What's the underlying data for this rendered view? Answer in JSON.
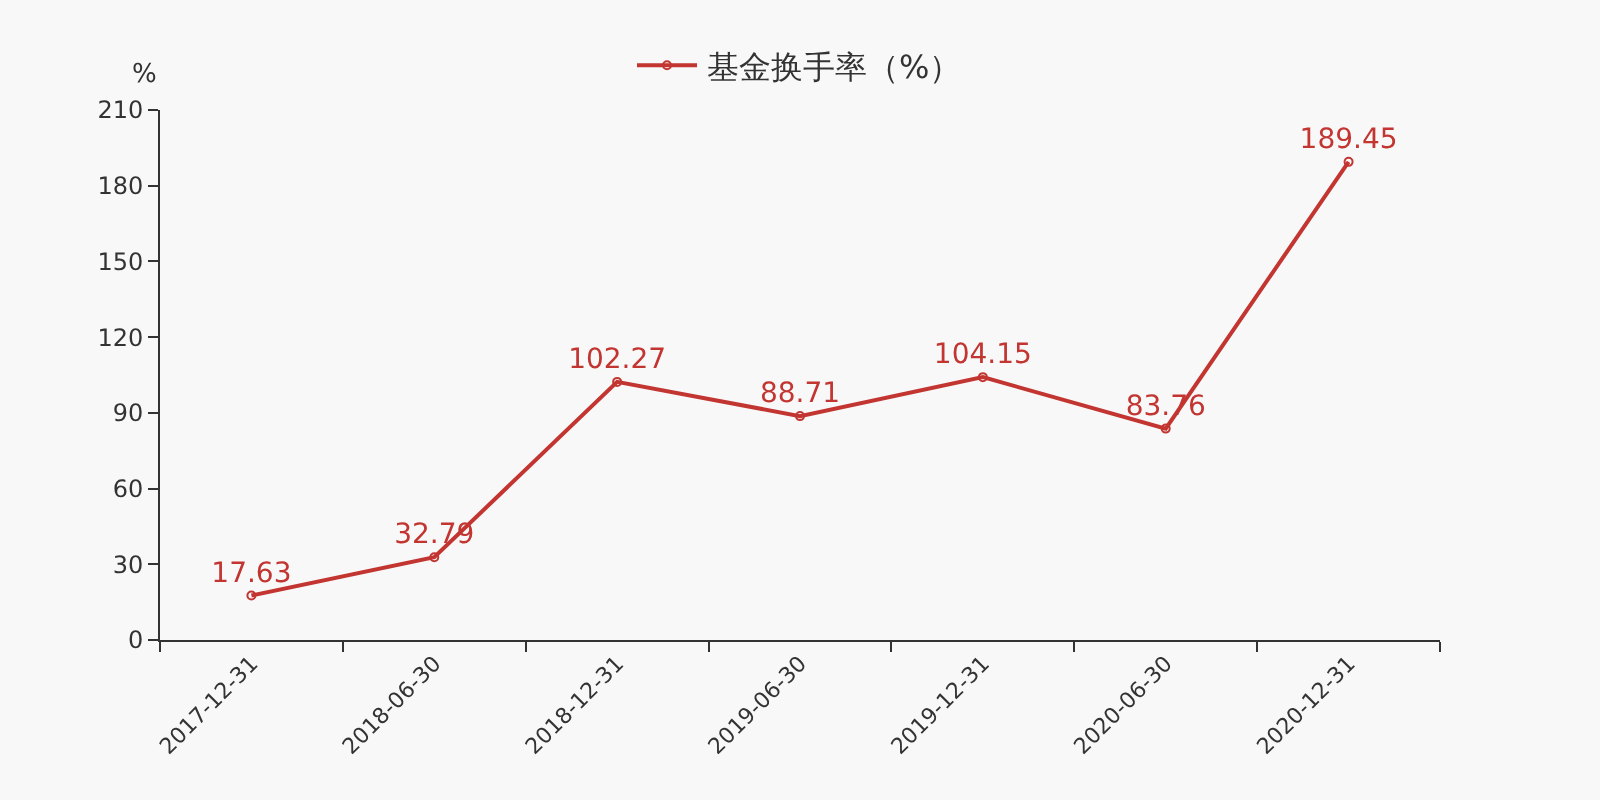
{
  "chart_data": {
    "type": "line",
    "ylabel": "%",
    "categories": [
      "2017-12-31",
      "2018-06-30",
      "2018-12-31",
      "2019-06-30",
      "2019-12-31",
      "2020-06-30",
      "2020-12-31"
    ],
    "series": [
      {
        "name": "基金换手率（%）",
        "color": "#c23531",
        "values": [
          17.63,
          32.79,
          102.27,
          88.71,
          104.15,
          83.76,
          189.45
        ]
      }
    ],
    "ylim": [
      0,
      210
    ],
    "yticks": [
      0,
      30,
      60,
      90,
      120,
      150,
      180,
      210
    ],
    "legend": "top",
    "marker": "circle",
    "line_style": "solid",
    "data_labels": true
  }
}
